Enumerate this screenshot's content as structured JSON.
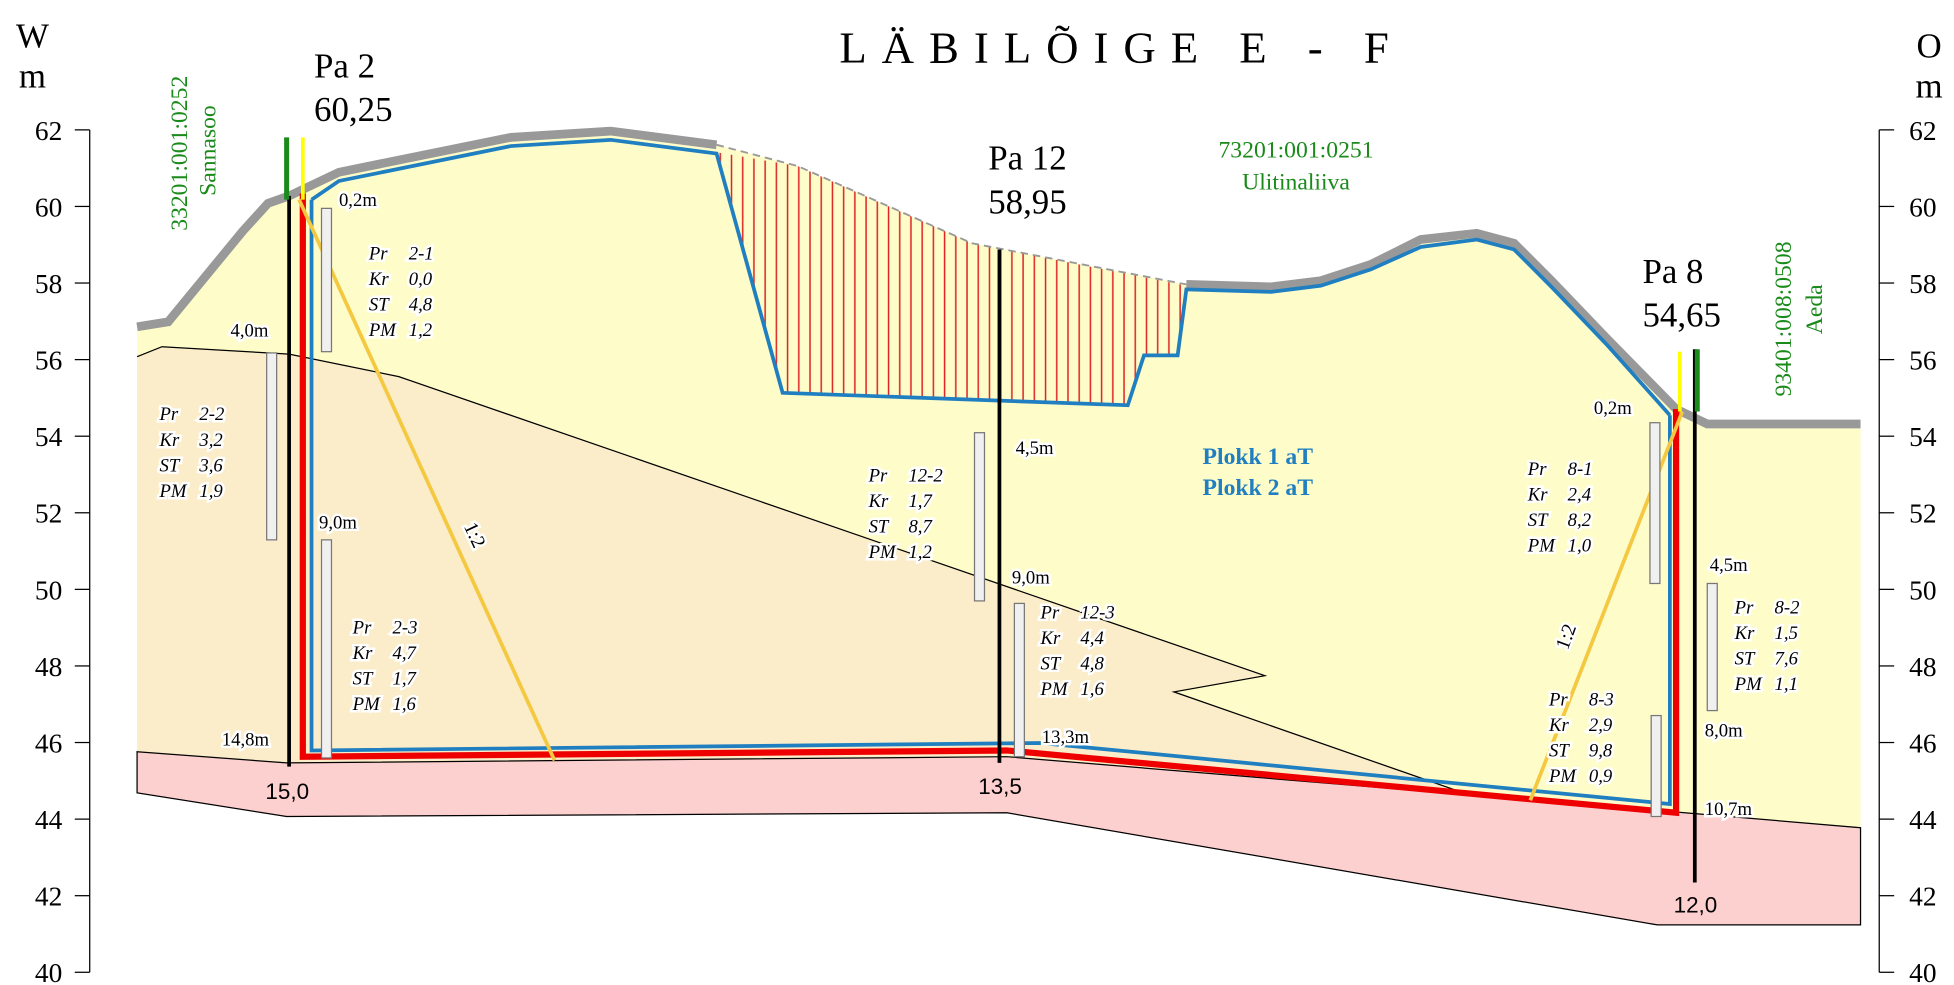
{
  "title": "LÄBILÕIGE E - F",
  "left_axis": {
    "label": "W",
    "unit": "m",
    "ticks": [
      62,
      60,
      58,
      56,
      54,
      52,
      50,
      48,
      46,
      44,
      42,
      40
    ]
  },
  "right_axis": {
    "label": "O",
    "unit": "m",
    "ticks": [
      62,
      60,
      58,
      56,
      54,
      52,
      50,
      48,
      46,
      44,
      42,
      40
    ]
  },
  "parcels": [
    {
      "code": "33201:001:0252",
      "name": "Sannasoo"
    },
    {
      "code": "73201:001:0251",
      "name": "Ulitinaliiva"
    },
    {
      "code": "93401:008:0508",
      "name": "Aeda"
    }
  ],
  "boreholes": [
    {
      "name": "Pa 2",
      "elevation": "60,25",
      "depths": [
        "0,2m",
        "4,0m",
        "9,0m",
        "14,8m"
      ],
      "bottom": "15,0"
    },
    {
      "name": "Pa 12",
      "elevation": "58,95",
      "depths": [
        "4,5m",
        "9,0m",
        "13,3m"
      ],
      "bottom": "13,5"
    },
    {
      "name": "Pa 8",
      "elevation": "54,65",
      "depths": [
        "0,2m",
        "4,5m",
        "8,0m",
        "10,7m"
      ],
      "bottom": "12,0"
    }
  ],
  "samples": [
    {
      "lines": [
        [
          "Pr",
          "2-1"
        ],
        [
          "Kr",
          "0,0"
        ],
        [
          "ST",
          "4,8"
        ],
        [
          "PM",
          "1,2"
        ]
      ]
    },
    {
      "lines": [
        [
          "Pr",
          "2-2"
        ],
        [
          "Kr",
          "3,2"
        ],
        [
          "ST",
          "3,6"
        ],
        [
          "PM",
          "1,9"
        ]
      ]
    },
    {
      "lines": [
        [
          "Pr",
          "2-3"
        ],
        [
          "Kr",
          "4,7"
        ],
        [
          "ST",
          "1,7"
        ],
        [
          "PM",
          "1,6"
        ]
      ]
    },
    {
      "lines": [
        [
          "Pr",
          "12-2"
        ],
        [
          "Kr",
          "1,7"
        ],
        [
          "ST",
          "8,7"
        ],
        [
          "PM",
          "1,2"
        ]
      ]
    },
    {
      "lines": [
        [
          "Pr",
          "12-3"
        ],
        [
          "Kr",
          "4,4"
        ],
        [
          "ST",
          "4,8"
        ],
        [
          "PM",
          "1,6"
        ]
      ]
    },
    {
      "lines": [
        [
          "Pr",
          "8-1"
        ],
        [
          "Kr",
          "2,4"
        ],
        [
          "ST",
          "8,2"
        ],
        [
          "PM",
          "1,0"
        ]
      ]
    },
    {
      "lines": [
        [
          "Pr",
          "8-2"
        ],
        [
          "Kr",
          "1,5"
        ],
        [
          "ST",
          "7,6"
        ],
        [
          "PM",
          "1,1"
        ]
      ]
    },
    {
      "lines": [
        [
          "Pr",
          "8-3"
        ],
        [
          "Kr",
          "2,9"
        ],
        [
          "ST",
          "9,8"
        ],
        [
          "PM",
          "0,9"
        ]
      ]
    }
  ],
  "blocks": [
    "Plokk 1 aT",
    "Plokk 2 aT"
  ],
  "slopes": [
    "1:2",
    "1:2"
  ]
}
